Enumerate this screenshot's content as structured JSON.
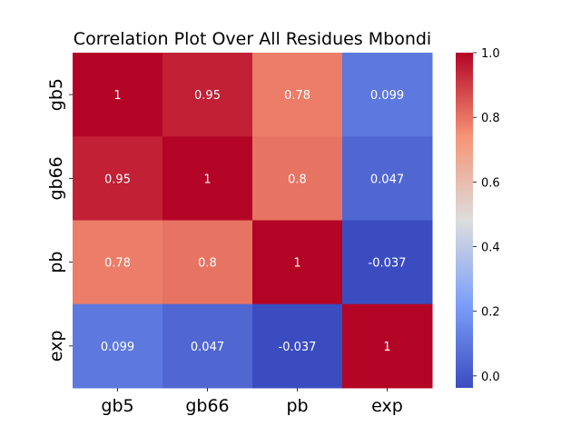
{
  "chart_data": {
    "type": "heatmap",
    "title": "Correlation Plot Over All Residues Mbondi",
    "x_labels": [
      "gb5",
      "gb66",
      "pb",
      "exp"
    ],
    "y_labels": [
      "gb5",
      "gb66",
      "pb",
      "exp"
    ],
    "values": [
      [
        1,
        0.95,
        0.78,
        0.099
      ],
      [
        0.95,
        1,
        0.8,
        0.047
      ],
      [
        0.78,
        0.8,
        1,
        -0.037
      ],
      [
        0.099,
        0.047,
        -0.037,
        1
      ]
    ],
    "cell_labels": [
      [
        "1",
        "0.95",
        "0.78",
        "0.099"
      ],
      [
        "0.95",
        "1",
        "0.8",
        "0.047"
      ],
      [
        "0.78",
        "0.8",
        "1",
        "-0.037"
      ],
      [
        "0.099",
        "0.047",
        "-0.037",
        "1"
      ]
    ],
    "colormap": "coolwarm",
    "colorbar": {
      "range": [
        -0.037,
        1
      ],
      "ticks": [
        0.0,
        0.2,
        0.4,
        0.6,
        0.8,
        1.0
      ],
      "tick_labels": [
        "0.0",
        "0.2",
        "0.4",
        "0.6",
        "0.8",
        "1.0"
      ]
    }
  }
}
